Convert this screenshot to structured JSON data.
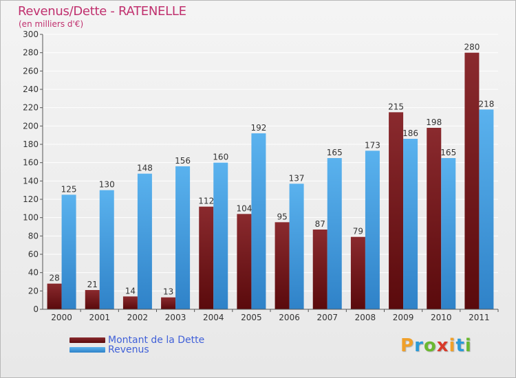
{
  "title": "Revenus/Dette - RATENELLE",
  "subtitle": "(en milliers d'€)",
  "brand": {
    "letters": [
      "P",
      "r",
      "o",
      "x",
      "i",
      "t",
      "i"
    ],
    "colors": [
      "#f0a02a",
      "#2a9ad8",
      "#6ab830",
      "#d83a2a",
      "#f0a02a",
      "#2a9ad8",
      "#6ab830"
    ]
  },
  "chart_data": {
    "type": "bar",
    "categories": [
      "2000",
      "2001",
      "2002",
      "2003",
      "2004",
      "2005",
      "2006",
      "2007",
      "2008",
      "2009",
      "2010",
      "2011"
    ],
    "series": [
      {
        "name": "Montant de la Dette",
        "color": "#7a1a1e",
        "values": [
          28,
          21,
          14,
          13,
          112,
          104,
          95,
          87,
          79,
          215,
          198,
          280
        ]
      },
      {
        "name": "Revenus",
        "color": "#4aa6e8",
        "values": [
          125,
          130,
          148,
          156,
          160,
          192,
          137,
          165,
          173,
          186,
          165,
          218
        ]
      }
    ],
    "ylim": [
      0,
      300
    ],
    "yticks": [
      0,
      20,
      40,
      60,
      80,
      100,
      120,
      140,
      160,
      180,
      200,
      220,
      240,
      260,
      280,
      300
    ],
    "grid": true,
    "legend": "bottom-left"
  }
}
